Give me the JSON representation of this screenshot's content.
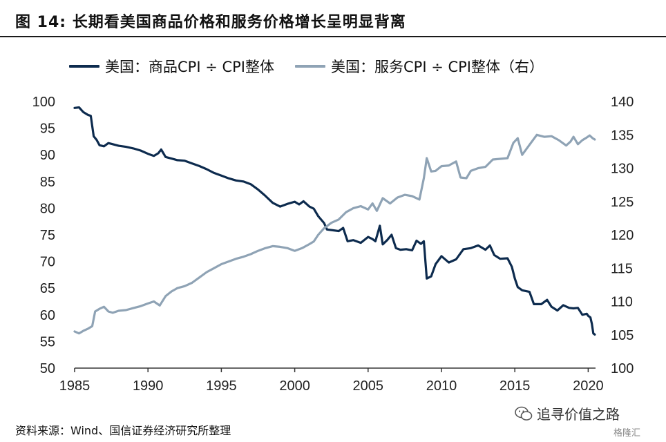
{
  "title": "图  14:  长期看美国商品价格和服务价格增长呈明显背离",
  "source": "资料来源：Wind、国信证券经济研究所整理",
  "watermark": {
    "text": "追寻价值之路",
    "badge": "格隆汇",
    "icon": "wechat-icon"
  },
  "chart_data": {
    "type": "line",
    "title": "图  14:  长期看美国商品价格和服务价格增长呈明显背离",
    "x_ticks": [
      1985,
      1990,
      1995,
      2000,
      2005,
      2010,
      2015,
      2020
    ],
    "xlim": [
      1985,
      2020.5
    ],
    "y_left": {
      "ticks": [
        50,
        55,
        60,
        65,
        70,
        75,
        80,
        85,
        90,
        95,
        100
      ],
      "ylim": [
        50,
        100
      ]
    },
    "y_right": {
      "ticks": [
        100,
        105,
        110,
        115,
        120,
        125,
        130,
        135,
        140
      ],
      "ylim": [
        100,
        140
      ]
    },
    "grid": false,
    "legend": "top",
    "series": [
      {
        "name": "美国：商品CPI ÷ CPI整体",
        "axis": "left",
        "color": "#0d2b4e",
        "points": [
          [
            1985.0,
            98.8
          ],
          [
            1985.3,
            98.9
          ],
          [
            1985.6,
            98.0
          ],
          [
            1985.9,
            97.5
          ],
          [
            1986.1,
            97.3
          ],
          [
            1986.3,
            93.5
          ],
          [
            1986.5,
            92.8
          ],
          [
            1986.7,
            91.8
          ],
          [
            1987.0,
            91.6
          ],
          [
            1987.3,
            92.2
          ],
          [
            1987.6,
            92.0
          ],
          [
            1988.0,
            91.7
          ],
          [
            1988.5,
            91.5
          ],
          [
            1989.0,
            91.2
          ],
          [
            1989.5,
            90.8
          ],
          [
            1990.0,
            90.2
          ],
          [
            1990.4,
            89.8
          ],
          [
            1990.7,
            90.3
          ],
          [
            1990.9,
            91.0
          ],
          [
            1991.2,
            89.6
          ],
          [
            1991.6,
            89.3
          ],
          [
            1992.0,
            89.0
          ],
          [
            1992.5,
            88.9
          ],
          [
            1993.0,
            88.4
          ],
          [
            1993.5,
            87.9
          ],
          [
            1994.0,
            87.3
          ],
          [
            1994.5,
            86.6
          ],
          [
            1995.0,
            86.1
          ],
          [
            1995.5,
            85.6
          ],
          [
            1996.0,
            85.2
          ],
          [
            1996.5,
            85.0
          ],
          [
            1997.0,
            84.5
          ],
          [
            1997.5,
            83.5
          ],
          [
            1998.0,
            82.3
          ],
          [
            1998.5,
            81.0
          ],
          [
            1999.0,
            80.3
          ],
          [
            1999.5,
            80.8
          ],
          [
            2000.0,
            81.2
          ],
          [
            2000.3,
            80.7
          ],
          [
            2000.6,
            81.3
          ],
          [
            2001.0,
            80.3
          ],
          [
            2001.3,
            79.9
          ],
          [
            2001.6,
            78.5
          ],
          [
            2002.0,
            77.2
          ],
          [
            2002.2,
            76.0
          ],
          [
            2002.5,
            75.9
          ],
          [
            2003.0,
            75.7
          ],
          [
            2003.3,
            76.3
          ],
          [
            2003.6,
            73.8
          ],
          [
            2004.0,
            74.0
          ],
          [
            2004.5,
            73.5
          ],
          [
            2005.0,
            74.6
          ],
          [
            2005.3,
            74.2
          ],
          [
            2005.5,
            73.8
          ],
          [
            2005.8,
            76.7
          ],
          [
            2006.0,
            73.2
          ],
          [
            2006.3,
            74.0
          ],
          [
            2006.6,
            75.0
          ],
          [
            2006.9,
            72.5
          ],
          [
            2007.2,
            72.2
          ],
          [
            2007.6,
            72.3
          ],
          [
            2008.0,
            72.1
          ],
          [
            2008.3,
            73.9
          ],
          [
            2008.6,
            73.3
          ],
          [
            2008.8,
            73.8
          ],
          [
            2009.0,
            66.8
          ],
          [
            2009.3,
            67.2
          ],
          [
            2009.6,
            69.5
          ],
          [
            2010.0,
            71.0
          ],
          [
            2010.5,
            69.8
          ],
          [
            2011.0,
            70.4
          ],
          [
            2011.5,
            72.3
          ],
          [
            2012.0,
            72.5
          ],
          [
            2012.5,
            73.0
          ],
          [
            2013.0,
            72.2
          ],
          [
            2013.3,
            73.0
          ],
          [
            2013.6,
            71.2
          ],
          [
            2014.0,
            70.5
          ],
          [
            2014.5,
            70.6
          ],
          [
            2014.8,
            69.0
          ],
          [
            2015.0,
            66.8
          ],
          [
            2015.2,
            65.2
          ],
          [
            2015.5,
            64.6
          ],
          [
            2016.0,
            64.3
          ],
          [
            2016.3,
            62.0
          ],
          [
            2016.8,
            62.0
          ],
          [
            2017.2,
            62.8
          ],
          [
            2017.5,
            61.5
          ],
          [
            2017.9,
            60.8
          ],
          [
            2018.3,
            61.8
          ],
          [
            2018.7,
            61.3
          ],
          [
            2019.0,
            61.2
          ],
          [
            2019.3,
            61.3
          ],
          [
            2019.6,
            60.0
          ],
          [
            2019.9,
            60.2
          ],
          [
            2020.0,
            59.8
          ],
          [
            2020.15,
            59.5
          ],
          [
            2020.25,
            58.3
          ],
          [
            2020.35,
            56.5
          ],
          [
            2020.45,
            56.3
          ]
        ]
      },
      {
        "name": "美国：服务CPI ÷ CPI整体（右）",
        "axis": "right",
        "color": "#8fa3b5",
        "points": [
          [
            1985.0,
            105.5
          ],
          [
            1985.3,
            105.2
          ],
          [
            1985.6,
            105.6
          ],
          [
            1985.9,
            105.9
          ],
          [
            1986.2,
            106.3
          ],
          [
            1986.4,
            108.5
          ],
          [
            1986.7,
            108.9
          ],
          [
            1987.0,
            109.2
          ],
          [
            1987.3,
            108.5
          ],
          [
            1987.6,
            108.3
          ],
          [
            1988.0,
            108.6
          ],
          [
            1988.5,
            108.7
          ],
          [
            1989.0,
            109.0
          ],
          [
            1989.5,
            109.3
          ],
          [
            1990.0,
            109.7
          ],
          [
            1990.4,
            110.0
          ],
          [
            1990.8,
            109.4
          ],
          [
            1991.2,
            110.8
          ],
          [
            1991.6,
            111.5
          ],
          [
            1992.0,
            112.0
          ],
          [
            1992.5,
            112.3
          ],
          [
            1993.0,
            112.8
          ],
          [
            1993.5,
            113.6
          ],
          [
            1994.0,
            114.4
          ],
          [
            1994.5,
            115.0
          ],
          [
            1995.0,
            115.6
          ],
          [
            1995.5,
            116.0
          ],
          [
            1996.0,
            116.4
          ],
          [
            1996.5,
            116.7
          ],
          [
            1997.0,
            117.1
          ],
          [
            1997.5,
            117.6
          ],
          [
            1998.0,
            118.0
          ],
          [
            1998.5,
            118.3
          ],
          [
            1999.0,
            118.2
          ],
          [
            1999.5,
            118.0
          ],
          [
            2000.0,
            117.6
          ],
          [
            2000.5,
            118.0
          ],
          [
            2001.0,
            118.6
          ],
          [
            2001.3,
            119.0
          ],
          [
            2001.6,
            120.0
          ],
          [
            2002.0,
            121.0
          ],
          [
            2002.5,
            121.8
          ],
          [
            2003.0,
            122.3
          ],
          [
            2003.5,
            123.4
          ],
          [
            2004.0,
            124.0
          ],
          [
            2004.5,
            124.3
          ],
          [
            2005.0,
            123.8
          ],
          [
            2005.3,
            124.7
          ],
          [
            2005.6,
            123.6
          ],
          [
            2006.0,
            125.5
          ],
          [
            2006.5,
            124.7
          ],
          [
            2007.0,
            125.6
          ],
          [
            2007.5,
            126.0
          ],
          [
            2008.0,
            125.8
          ],
          [
            2008.5,
            125.3
          ],
          [
            2008.8,
            128.5
          ],
          [
            2009.0,
            131.5
          ],
          [
            2009.3,
            129.5
          ],
          [
            2009.6,
            129.6
          ],
          [
            2010.0,
            130.3
          ],
          [
            2010.5,
            130.4
          ],
          [
            2011.0,
            131.0
          ],
          [
            2011.3,
            128.6
          ],
          [
            2011.7,
            128.5
          ],
          [
            2012.0,
            129.6
          ],
          [
            2012.5,
            130.0
          ],
          [
            2013.0,
            130.2
          ],
          [
            2013.5,
            131.3
          ],
          [
            2014.0,
            131.4
          ],
          [
            2014.5,
            131.5
          ],
          [
            2014.9,
            133.8
          ],
          [
            2015.2,
            134.5
          ],
          [
            2015.5,
            132.0
          ],
          [
            2016.0,
            133.5
          ],
          [
            2016.5,
            135.0
          ],
          [
            2017.0,
            134.7
          ],
          [
            2017.5,
            134.8
          ],
          [
            2018.0,
            134.2
          ],
          [
            2018.5,
            133.4
          ],
          [
            2018.8,
            134.0
          ],
          [
            2019.0,
            134.7
          ],
          [
            2019.3,
            133.6
          ],
          [
            2019.6,
            134.2
          ],
          [
            2019.9,
            134.6
          ],
          [
            2020.1,
            134.9
          ],
          [
            2020.3,
            134.5
          ],
          [
            2020.45,
            134.3
          ]
        ]
      }
    ]
  }
}
